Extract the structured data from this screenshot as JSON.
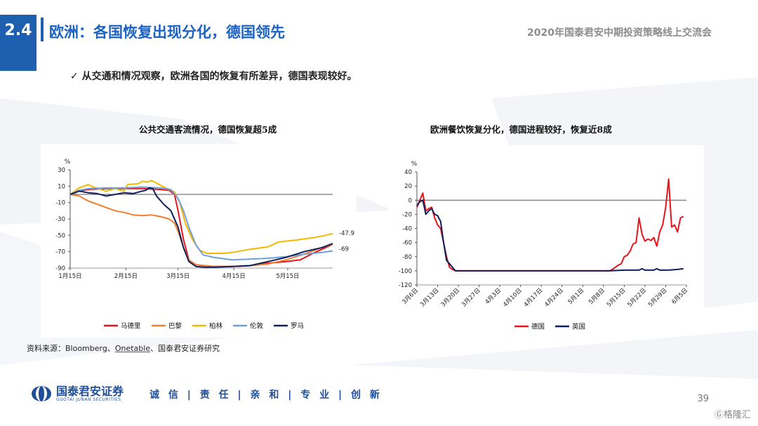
{
  "header": {
    "section_number": "2.4",
    "title": "欧洲：各国恢复出现分化，德国领先",
    "conference": "2020年国泰君安中期投资策略线上交流会"
  },
  "bullet": "✓ 从交通和情况观察，欧洲各国的恢复有所差异，德国表现较好。",
  "source": {
    "prefix": "资料来源：Bloomberg、",
    "underlined": "Onetable",
    "suffix": "、国泰君安证券研究"
  },
  "footer": {
    "logo_cn": "国泰君安证券",
    "logo_en": "GUOTAI JUNAN SECURITIES",
    "motto": "诚 信 | 责 任 | 亲 和 | 专 业 | 创 新",
    "page_number": "39",
    "watermark": "Ⓖ格隆汇"
  },
  "colors": {
    "brand_blue": "#1f5fb0",
    "madrid": "#e8141b",
    "paris": "#f07f2e",
    "berlin": "#f5b800",
    "london": "#6f9fd8",
    "rome": "#0f1f5c",
    "germany": "#e8141b",
    "uk": "#0f1f5c"
  },
  "chart_data": [
    {
      "type": "line",
      "title": "公共交通客流情况，德国恢复超5成",
      "ylabel": "%",
      "ylim": [
        -90,
        30
      ],
      "yticks": [
        30,
        10,
        -10,
        -30,
        -50,
        -70,
        -90
      ],
      "xlabels": [
        "1月15日",
        "2月15日",
        "3月15日",
        "4月15日",
        "5月15日"
      ],
      "xlabel_days": [
        0,
        31,
        60,
        91,
        121
      ],
      "xlim": [
        0,
        146
      ],
      "end_labels": [
        "-47.9",
        "-69"
      ],
      "series": [
        {
          "name": "马德里",
          "color": "#e8141b",
          "points": [
            [
              0,
              0
            ],
            [
              5,
              4
            ],
            [
              10,
              6
            ],
            [
              20,
              7
            ],
            [
              30,
              7
            ],
            [
              40,
              7
            ],
            [
              50,
              6
            ],
            [
              55,
              5
            ],
            [
              58,
              0
            ],
            [
              60,
              -20
            ],
            [
              63,
              -55
            ],
            [
              66,
              -80
            ],
            [
              70,
              -86
            ],
            [
              80,
              -88
            ],
            [
              90,
              -88
            ],
            [
              100,
              -87
            ],
            [
              110,
              -84
            ],
            [
              120,
              -82
            ],
            [
              128,
              -80
            ],
            [
              135,
              -72
            ],
            [
              140,
              -67
            ],
            [
              146,
              -61
            ]
          ]
        },
        {
          "name": "巴黎",
          "color": "#f07f2e",
          "points": [
            [
              0,
              0
            ],
            [
              5,
              -2
            ],
            [
              10,
              -8
            ],
            [
              15,
              -12
            ],
            [
              20,
              -16
            ],
            [
              25,
              -20
            ],
            [
              30,
              -22
            ],
            [
              35,
              -25
            ],
            [
              40,
              -26
            ],
            [
              45,
              -25
            ],
            [
              50,
              -27
            ],
            [
              55,
              -30
            ],
            [
              58,
              -35
            ],
            [
              60,
              -45
            ],
            [
              63,
              -65
            ],
            [
              66,
              -80
            ],
            [
              70,
              -86
            ],
            [
              80,
              -88
            ],
            [
              90,
              -88
            ],
            [
              100,
              -87
            ],
            [
              110,
              -85
            ],
            [
              120,
              -80
            ],
            [
              130,
              -73
            ],
            [
              140,
              -65
            ],
            [
              146,
              -61
            ]
          ]
        },
        {
          "name": "柏林",
          "color": "#f5b800",
          "points": [
            [
              0,
              0
            ],
            [
              5,
              8
            ],
            [
              10,
              12
            ],
            [
              14,
              8
            ],
            [
              20,
              4
            ],
            [
              25,
              7
            ],
            [
              30,
              4
            ],
            [
              32,
              12
            ],
            [
              38,
              13
            ],
            [
              40,
              16
            ],
            [
              43,
              15
            ],
            [
              45,
              17
            ],
            [
              48,
              14
            ],
            [
              52,
              9
            ],
            [
              55,
              6
            ],
            [
              58,
              3
            ],
            [
              61,
              -10
            ],
            [
              64,
              -35
            ],
            [
              68,
              -55
            ],
            [
              72,
              -68
            ],
            [
              76,
              -72
            ],
            [
              85,
              -72
            ],
            [
              90,
              -71
            ],
            [
              100,
              -67
            ],
            [
              110,
              -64
            ],
            [
              116,
              -58
            ],
            [
              125,
              -56
            ],
            [
              135,
              -53
            ],
            [
              142,
              -50
            ],
            [
              146,
              -47.9
            ]
          ]
        },
        {
          "name": "伦敦",
          "color": "#6f9fd8",
          "points": [
            [
              0,
              0
            ],
            [
              5,
              5
            ],
            [
              10,
              7
            ],
            [
              20,
              8
            ],
            [
              30,
              8
            ],
            [
              40,
              9
            ],
            [
              50,
              8
            ],
            [
              56,
              6
            ],
            [
              60,
              -5
            ],
            [
              63,
              -20
            ],
            [
              66,
              -40
            ],
            [
              70,
              -62
            ],
            [
              74,
              -74
            ],
            [
              80,
              -77
            ],
            [
              90,
              -80
            ],
            [
              100,
              -79
            ],
            [
              110,
              -78
            ],
            [
              120,
              -76
            ],
            [
              130,
              -73
            ],
            [
              140,
              -71
            ],
            [
              146,
              -69
            ]
          ]
        },
        {
          "name": "罗马",
          "color": "#0f1f5c",
          "points": [
            [
              0,
              0
            ],
            [
              5,
              4
            ],
            [
              10,
              2
            ],
            [
              15,
              1
            ],
            [
              20,
              -2
            ],
            [
              25,
              0
            ],
            [
              30,
              2
            ],
            [
              35,
              1
            ],
            [
              40,
              4
            ],
            [
              42,
              5
            ],
            [
              44,
              8
            ],
            [
              46,
              7
            ],
            [
              48,
              -2
            ],
            [
              52,
              -12
            ],
            [
              56,
              -20
            ],
            [
              60,
              -40
            ],
            [
              63,
              -65
            ],
            [
              66,
              -82
            ],
            [
              70,
              -88
            ],
            [
              75,
              -89
            ],
            [
              80,
              -89
            ],
            [
              90,
              -88
            ],
            [
              100,
              -87
            ],
            [
              110,
              -82
            ],
            [
              120,
              -77
            ],
            [
              130,
              -70
            ],
            [
              140,
              -65
            ],
            [
              146,
              -60
            ]
          ]
        }
      ]
    },
    {
      "type": "line",
      "title": "欧洲餐饮恢复分化，德国进程较好，恢复近8成",
      "ylabel": "%",
      "ylim": [
        -120,
        40
      ],
      "yticks": [
        40,
        20,
        0,
        -20,
        -40,
        -60,
        -80,
        -100,
        -120
      ],
      "xlabels": [
        "3月6日",
        "3月13日",
        "3月20日",
        "3月27日",
        "4月3日",
        "4月10日",
        "4月17日",
        "4月24日",
        "5月1日",
        "5月8日",
        "5月15日",
        "5月22日",
        "5月29日",
        "6月5日"
      ],
      "xlabel_days": [
        0,
        7,
        14,
        21,
        28,
        35,
        42,
        49,
        56,
        63,
        70,
        77,
        84,
        91
      ],
      "xlim": [
        0,
        91
      ],
      "series": [
        {
          "name": "德国",
          "color": "#e8141b",
          "points": [
            [
              0,
              -10
            ],
            [
              1,
              0
            ],
            [
              2,
              10
            ],
            [
              3,
              -15
            ],
            [
              4,
              -12
            ],
            [
              5,
              -10
            ],
            [
              6,
              -25
            ],
            [
              7,
              -35
            ],
            [
              8,
              -40
            ],
            [
              9,
              -60
            ],
            [
              10,
              -80
            ],
            [
              11,
              -95
            ],
            [
              12,
              -98
            ],
            [
              13,
              -100
            ],
            [
              20,
              -100
            ],
            [
              40,
              -100
            ],
            [
              60,
              -100
            ],
            [
              65,
              -100
            ],
            [
              66,
              -98
            ],
            [
              67,
              -95
            ],
            [
              68,
              -92
            ],
            [
              69,
              -90
            ],
            [
              70,
              -80
            ],
            [
              71,
              -78
            ],
            [
              72,
              -72
            ],
            [
              73,
              -62
            ],
            [
              74,
              -60
            ],
            [
              75,
              -25
            ],
            [
              76,
              -48
            ],
            [
              77,
              -58
            ],
            [
              78,
              -55
            ],
            [
              79,
              -57
            ],
            [
              80,
              -53
            ],
            [
              81,
              -65
            ],
            [
              82,
              -45
            ],
            [
              83,
              -35
            ],
            [
              84,
              -10
            ],
            [
              85,
              30
            ],
            [
              86,
              -38
            ],
            [
              87,
              -35
            ],
            [
              88,
              -45
            ],
            [
              89,
              -25
            ],
            [
              90,
              -23
            ]
          ]
        },
        {
          "name": "英国",
          "color": "#0f1f5c",
          "points": [
            [
              0,
              -8
            ],
            [
              1,
              -2
            ],
            [
              2,
              0
            ],
            [
              3,
              -20
            ],
            [
              4,
              -15
            ],
            [
              5,
              -12
            ],
            [
              6,
              -20
            ],
            [
              7,
              -22
            ],
            [
              8,
              -30
            ],
            [
              9,
              -60
            ],
            [
              10,
              -85
            ],
            [
              11,
              -90
            ],
            [
              12,
              -95
            ],
            [
              13,
              -100
            ],
            [
              30,
              -100
            ],
            [
              50,
              -100
            ],
            [
              65,
              -100
            ],
            [
              70,
              -99
            ],
            [
              75,
              -99
            ],
            [
              76,
              -97
            ],
            [
              77,
              -99
            ],
            [
              80,
              -99
            ],
            [
              81,
              -97
            ],
            [
              82,
              -99
            ],
            [
              85,
              -99
            ],
            [
              88,
              -98
            ],
            [
              90,
              -97
            ]
          ]
        }
      ]
    }
  ]
}
